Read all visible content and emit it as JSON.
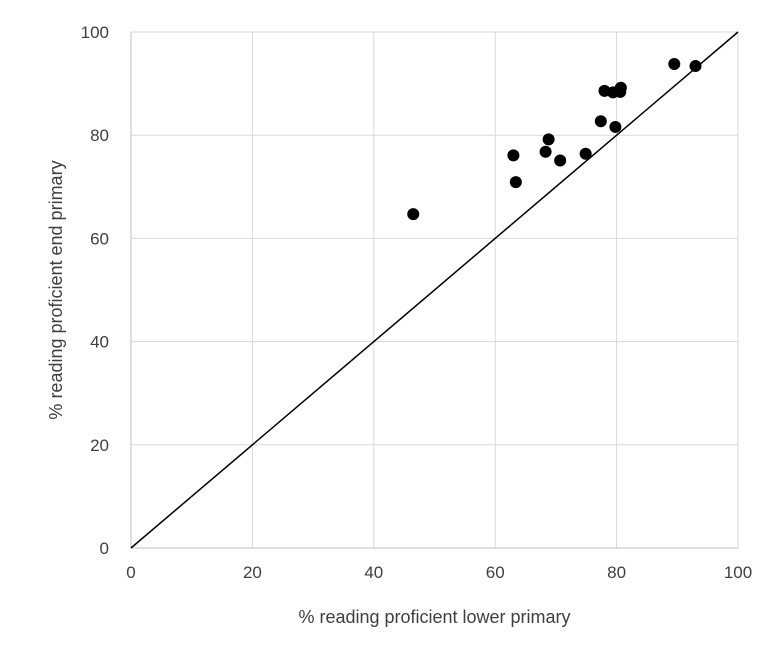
{
  "chart_data": {
    "type": "scatter",
    "title": "",
    "xlabel": "% reading proficient lower primary",
    "ylabel": "% reading proficient end primary",
    "xlim": [
      0,
      100
    ],
    "ylim": [
      0,
      100
    ],
    "x_ticks": [
      "0",
      "20",
      "40",
      "60",
      "80",
      "100"
    ],
    "y_ticks": [
      "0",
      "20",
      "40",
      "60",
      "80",
      "100"
    ],
    "grid": true,
    "legend": "none",
    "reference_line": {
      "from": [
        0,
        0
      ],
      "to": [
        100,
        100
      ]
    },
    "series": [
      {
        "points": [
          {
            "x": 46.5,
            "y": 64.7
          },
          {
            "x": 63.0,
            "y": 76.1
          },
          {
            "x": 63.4,
            "y": 70.9
          },
          {
            "x": 68.3,
            "y": 76.8
          },
          {
            "x": 68.8,
            "y": 79.2
          },
          {
            "x": 70.7,
            "y": 75.1
          },
          {
            "x": 74.9,
            "y": 76.4
          },
          {
            "x": 77.4,
            "y": 82.7
          },
          {
            "x": 78.0,
            "y": 88.6
          },
          {
            "x": 79.4,
            "y": 88.3
          },
          {
            "x": 79.8,
            "y": 81.6
          },
          {
            "x": 80.6,
            "y": 88.4
          },
          {
            "x": 80.7,
            "y": 89.2
          },
          {
            "x": 89.5,
            "y": 93.8
          },
          {
            "x": 93.0,
            "y": 93.4
          }
        ]
      }
    ]
  },
  "colors": {
    "marker": "#000000",
    "reference_line": "#000000",
    "grid": "#d9d9d9",
    "text": "#404040"
  }
}
